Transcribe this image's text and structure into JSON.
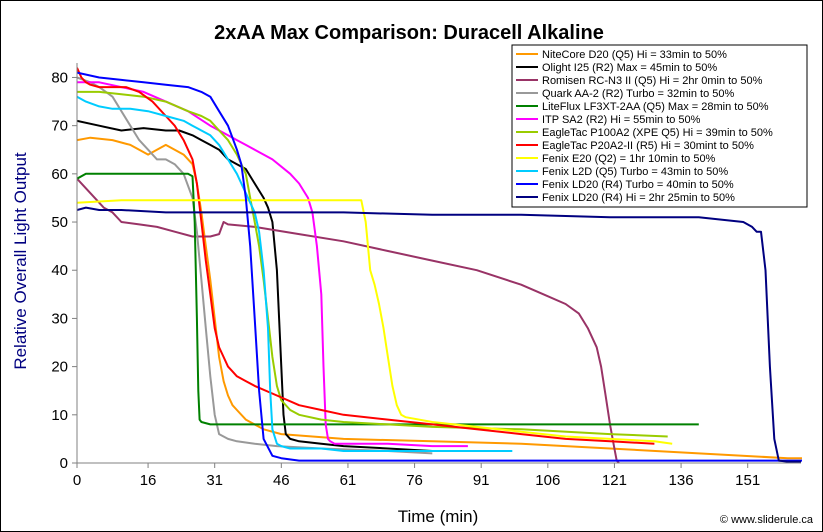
{
  "chart_data": {
    "type": "line",
    "title": "2xAA Max Comparison: Duracell Alkaline",
    "xlabel": "Time (min)",
    "ylabel": "Relative Overall Light Output",
    "xlim": [
      0,
      163
    ],
    "ylim": [
      0,
      83
    ],
    "xticks": [
      0,
      16,
      31,
      46,
      61,
      76,
      91,
      106,
      121,
      136,
      151
    ],
    "xtick_labels": [
      "0",
      "16",
      "31",
      "46",
      "61",
      "76",
      "91",
      "106",
      "121",
      "136",
      "151"
    ],
    "yticks": [
      0,
      10,
      20,
      30,
      40,
      50,
      60,
      70,
      80
    ],
    "ytick_labels": [
      "0",
      "10",
      "20",
      "30",
      "40",
      "50",
      "60",
      "70",
      "80"
    ],
    "grid": false,
    "legend_position": "top-right",
    "credit": "© www.sliderule.ca",
    "series": [
      {
        "name": "NiteCore D20 (Q5) Hi = 33min to 50%",
        "color": "#FF9900",
        "x": [
          0,
          3,
          8,
          12,
          16,
          20,
          22,
          24,
          26,
          27,
          28,
          29,
          30,
          31,
          32,
          33,
          34,
          35,
          36,
          38,
          42,
          46,
          60,
          80,
          100,
          120,
          140,
          160,
          165
        ],
        "y": [
          67,
          67.5,
          67,
          66,
          64,
          66,
          65,
          64,
          62,
          58,
          52,
          45,
          38,
          30,
          22,
          17,
          14,
          12,
          11,
          9,
          7,
          6,
          5,
          4.5,
          4,
          3,
          2,
          1,
          1
        ]
      },
      {
        "name": "Olight I25 (R2) Max = 45min to 50%",
        "color": "#000000",
        "x": [
          0,
          5,
          10,
          15,
          20,
          23,
          26,
          28,
          30,
          32,
          34,
          36,
          38,
          40,
          42,
          43,
          44,
          45,
          45.5,
          46,
          46.5,
          47,
          48,
          50,
          55,
          60,
          70,
          80,
          90
        ],
        "y": [
          71,
          70,
          69,
          69.5,
          69,
          69,
          68,
          67,
          66,
          65,
          63,
          62,
          61,
          58,
          55,
          53,
          50,
          40,
          30,
          20,
          10,
          6,
          5,
          4.5,
          4,
          3.5,
          3,
          2.5,
          2.5
        ]
      },
      {
        "name": "Romisen RC-N3 II (Q5) Hi = 2hr 0min to 50%",
        "color": "#993366",
        "x": [
          0,
          2,
          4,
          6,
          8,
          10,
          14,
          18,
          22,
          26,
          28,
          30,
          32,
          33,
          34,
          40,
          50,
          60,
          70,
          80,
          90,
          100,
          105,
          110,
          113,
          115,
          117,
          118,
          119,
          120,
          121,
          121.5,
          122
        ],
        "y": [
          59,
          57,
          55,
          53,
          52,
          50,
          49.5,
          49,
          48,
          47,
          47,
          47,
          47.5,
          50,
          49.5,
          49,
          47.5,
          46,
          44,
          42,
          40,
          37,
          35,
          33,
          31,
          28,
          24,
          20,
          14,
          8,
          3,
          0.5,
          0
        ]
      },
      {
        "name": "Quark AA-2 (R2) Turbo = 32min to 50%",
        "color": "#999999",
        "x": [
          0,
          3,
          5,
          8,
          10,
          12,
          14,
          16,
          18,
          20,
          22,
          24,
          26,
          27,
          28,
          29,
          30,
          31,
          32,
          34,
          36,
          40,
          45,
          55,
          70,
          80
        ],
        "y": [
          80,
          79,
          78,
          76,
          73,
          70,
          67,
          65,
          63,
          63,
          62,
          60,
          55,
          48,
          38,
          28,
          18,
          10,
          6,
          5,
          4.5,
          4,
          3.5,
          3,
          2.5,
          2
        ]
      },
      {
        "name": "LiteFlux LF3XT-2AA (Q5) Max = 28min to 50%",
        "color": "#008000",
        "x": [
          0,
          2,
          10,
          20,
          25,
          26,
          26.5,
          27,
          27.3,
          27.6,
          28,
          30,
          60,
          100,
          140
        ],
        "y": [
          59,
          60,
          60,
          60,
          60,
          59.5,
          50,
          30,
          15,
          9,
          8.5,
          8,
          8,
          8,
          8
        ]
      },
      {
        "name": "ITP SA2 (R2) Hi = 55min to 50%",
        "color": "#FF00FF",
        "x": [
          0,
          5,
          10,
          15,
          20,
          25,
          30,
          34,
          36,
          38,
          40,
          44,
          48,
          50,
          52,
          53,
          54,
          55,
          55.5,
          56,
          56.5,
          57,
          58,
          60,
          70,
          80,
          88
        ],
        "y": [
          79,
          79,
          78,
          77,
          75,
          73,
          70,
          68,
          67,
          66,
          65,
          63,
          60,
          58,
          55,
          52,
          45,
          35,
          20,
          8,
          5,
          4.5,
          4,
          4,
          4,
          3.5,
          3.5
        ]
      },
      {
        "name": "EagleTac P100A2 (XPE Q5) Hi = 39min to 50%",
        "color": "#99CC00",
        "x": [
          0,
          5,
          10,
          15,
          20,
          25,
          28,
          30,
          32,
          34,
          36,
          38,
          39,
          40,
          41,
          42,
          43,
          44,
          45,
          46,
          48,
          50,
          55,
          60,
          70,
          80,
          100,
          120,
          133
        ],
        "y": [
          77,
          77,
          76.5,
          76,
          75,
          73,
          72,
          71,
          69,
          67,
          64,
          60,
          55,
          50,
          45,
          38,
          30,
          22,
          16,
          13,
          11,
          10,
          9,
          8.5,
          8,
          7.5,
          7,
          6,
          5.5
        ]
      },
      {
        "name": "EagleTac P20A2-II (R5) Hi = 30mint to 50%",
        "color": "#FF0000",
        "x": [
          0,
          1,
          2,
          3,
          5,
          8,
          11,
          14,
          17,
          20,
          22,
          24,
          26,
          27,
          28,
          29,
          30,
          31,
          32,
          33,
          34,
          35,
          36,
          38,
          40,
          45,
          50,
          55,
          60,
          70,
          80,
          90,
          100,
          110,
          120,
          130
        ],
        "y": [
          82,
          80,
          79,
          78.5,
          78,
          78,
          78,
          77,
          75,
          72,
          70,
          67,
          63,
          58,
          50,
          42,
          35,
          28,
          24,
          22,
          20,
          19,
          18,
          17,
          16,
          14,
          12,
          11,
          10,
          9,
          8,
          7,
          6,
          5,
          4.5,
          4
        ]
      },
      {
        "name": "Fenix E20 (Q2) = 1hr 10min to 50%",
        "color": "#FFFF00",
        "x": [
          0,
          10,
          20,
          30,
          40,
          50,
          60,
          64,
          65,
          66,
          67,
          68,
          69,
          70,
          71,
          72,
          73,
          74,
          80,
          90,
          100,
          110,
          120,
          130,
          134
        ],
        "y": [
          54,
          54.5,
          54.5,
          54.5,
          54.5,
          54.5,
          54.5,
          54.5,
          50,
          40,
          37,
          33,
          28,
          22,
          16,
          12,
          10,
          9.5,
          8.5,
          7.5,
          6.5,
          5.5,
          5,
          4.5,
          4
        ]
      },
      {
        "name": "Fenix L2D (Q5) Turbo = 43min to 50%",
        "color": "#00CCFF",
        "x": [
          0,
          2,
          5,
          8,
          12,
          16,
          20,
          24,
          26,
          28,
          30,
          32,
          34,
          36,
          38,
          40,
          41,
          42,
          43,
          43.5,
          44,
          45,
          46,
          48,
          50,
          55,
          60,
          70,
          80,
          90,
          98
        ],
        "y": [
          76,
          75,
          74,
          73.5,
          73.5,
          73,
          72,
          71,
          70,
          69,
          68,
          66,
          63,
          60,
          56,
          52,
          48,
          40,
          28,
          15,
          7,
          4,
          3.5,
          3,
          3,
          3,
          2.5,
          2.5,
          2.5,
          2.5,
          2.5
        ]
      },
      {
        "name": "Fenix LD20 (R4) Turbo = 40min to 50%",
        "color": "#0000FF",
        "x": [
          0,
          5,
          10,
          15,
          20,
          25,
          28,
          30,
          32,
          34,
          36,
          37,
          38,
          39,
          40,
          41,
          42,
          44,
          46,
          50,
          55,
          60,
          80,
          100,
          120,
          140,
          160,
          165
        ],
        "y": [
          81,
          80,
          79.5,
          79,
          78.5,
          78,
          77,
          76,
          73,
          70,
          65,
          62,
          55,
          45,
          30,
          15,
          5,
          1.5,
          1,
          0.5,
          0.5,
          0.5,
          0.5,
          0.5,
          0.5,
          0.5,
          0.5,
          0.5
        ]
      },
      {
        "name": "Fenix LD20 (R4) Hi = 2hr 25min to 50%",
        "color": "#000080",
        "x": [
          0,
          2,
          5,
          10,
          20,
          40,
          60,
          80,
          100,
          120,
          140,
          150,
          152,
          153,
          154,
          155,
          156,
          157,
          158,
          160,
          163
        ],
        "y": [
          52.5,
          53,
          52.5,
          52.5,
          52,
          52,
          52,
          51.5,
          51.5,
          51,
          51,
          50,
          49,
          48,
          48,
          40,
          20,
          5,
          0.5,
          0.3,
          0.3
        ]
      }
    ]
  }
}
